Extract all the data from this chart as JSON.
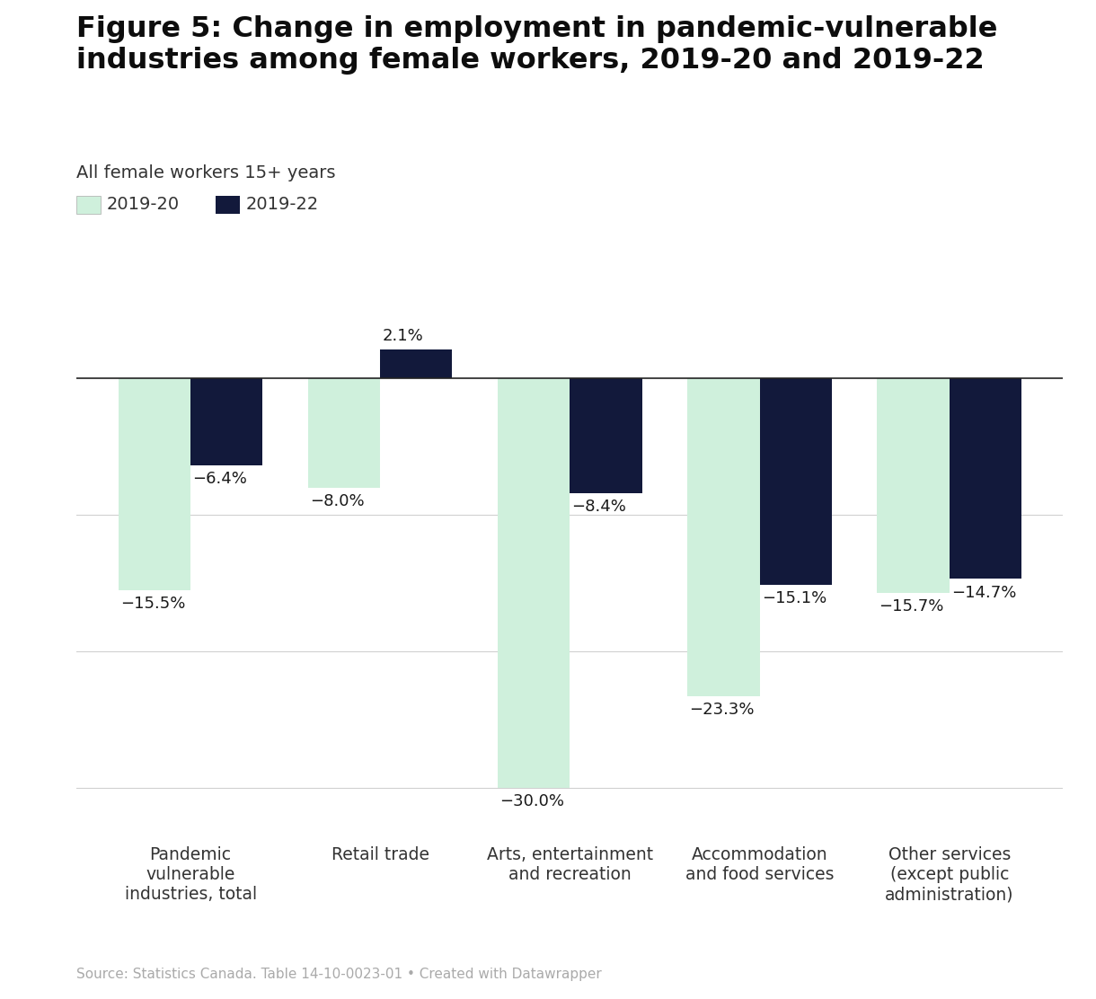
{
  "categories": [
    "Pandemic\nvulnerable\nindustries, total",
    "Retail trade",
    "Arts, entertainment\nand recreation",
    "Accommodation\nand food services",
    "Other services\n(except public\nadministration)"
  ],
  "values_2019_20": [
    -15.5,
    -8.0,
    -30.0,
    -23.3,
    -15.7
  ],
  "values_2019_22": [
    -6.4,
    2.1,
    -8.4,
    -15.1,
    -14.7
  ],
  "labels_2019_20": [
    "−15.5%",
    "−8.0%",
    "−30.0%",
    "−23.3%",
    "−15.7%"
  ],
  "labels_2019_22": [
    "−6.4%",
    "2.1%",
    "−8.4%",
    "−15.1%",
    "−14.7%"
  ],
  "color_2019_20": "#cff0dc",
  "color_2019_22": "#12193b",
  "title": "Figure 5: Change in employment in pandemic-vulnerable\nindustries among female workers, 2019-20 and 2019-22",
  "subtitle": "All female workers 15+ years",
  "legend_2019_20": "2019-20",
  "legend_2019_22": "2019-22",
  "source": "Source: Statistics Canada. Table 14-10-0023-01 • Created with Datawrapper",
  "ylim": [
    -33,
    5
  ],
  "bar_width": 0.38,
  "background_color": "#ffffff"
}
